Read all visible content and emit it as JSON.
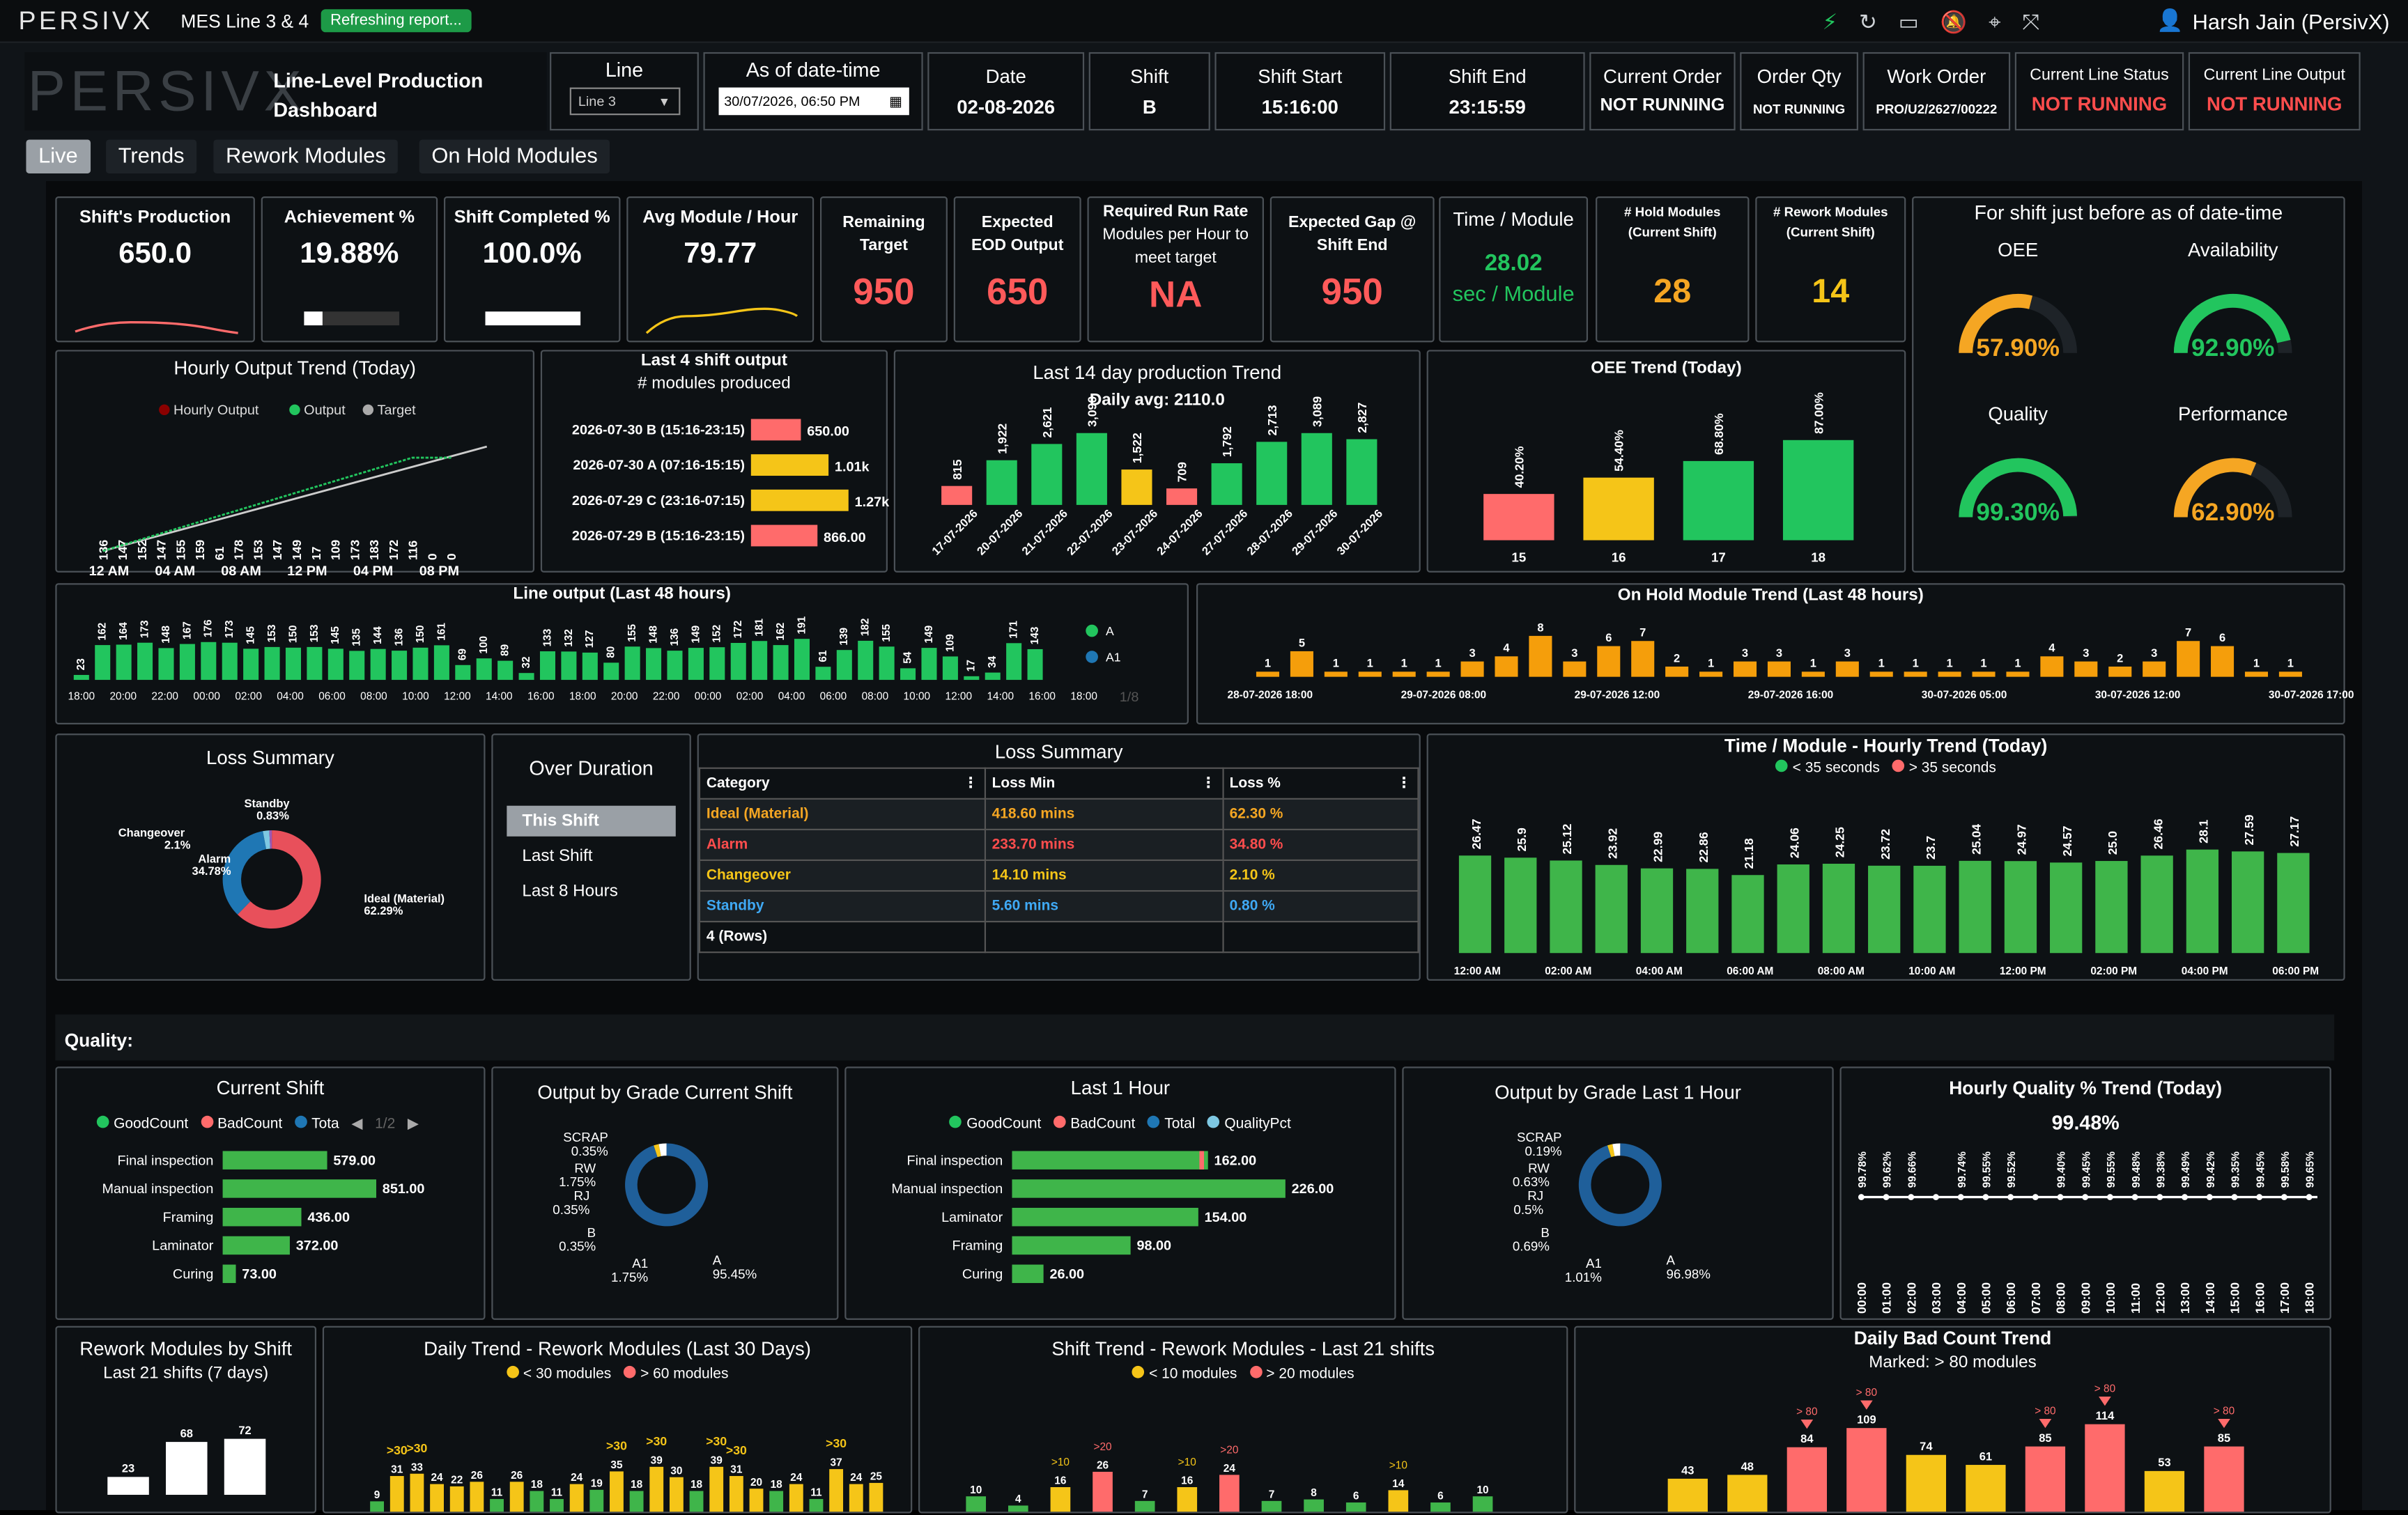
{
  "top": {
    "logo": "PERSIVX",
    "title": "MES Line 3 & 4",
    "badge": "Refreshing report...",
    "user": "Harsh Jain (PersivX)"
  },
  "header": {
    "dash_logo": "PERSIVX",
    "dash_title_1": "Line-Level Production",
    "dash_title_2": "Dashboard",
    "line_label": "Line",
    "line_value": "Line 3",
    "asof_label": "As of date-time",
    "asof_value": "30/07/2026, 06:50  PM",
    "date_label": "Date",
    "date_value": "02-08-2026",
    "shift_label": "Shift",
    "shift_value": "B",
    "sstart_label": "Shift Start",
    "sstart_value": "15:16:00",
    "send_label": "Shift End",
    "send_value": "23:15:59",
    "corder_label": "Current Order",
    "corder_value": "NOT RUNNING",
    "oqty_label": "Order Qty",
    "oqty_value": "NOT RUNNING",
    "wo_label": "Work Order",
    "wo_value": "PRO/U2/2627/00222",
    "cls_label": "Current Line Status",
    "cls_value": "NOT RUNNING",
    "clo_label": "Current Line Output",
    "clo_value": "NOT RUNNING"
  },
  "tabs": [
    "Live",
    "Trends",
    "Rework Modules",
    "On Hold Modules"
  ],
  "kpis": {
    "shift_prod_label": "Shift's Production",
    "shift_prod": "650.0",
    "ach_label": "Achievement %",
    "ach": "19.88%",
    "ach_frac": 0.1988,
    "shift_comp_label": "Shift Completed %",
    "shift_comp": "100.0%",
    "shift_comp_frac": 1.0,
    "avg_label": "Avg Module / Hour",
    "avg": "79.77",
    "rem_label_1": "Remaining",
    "rem_label_2": "Target",
    "rem": "950",
    "eod_label_1": "Expected",
    "eod_label_2": "EOD Output",
    "eod": "650",
    "rr_label_1": "Required Run Rate",
    "rr_label_2": "Modules per Hour to",
    "rr_label_3": "meet target",
    "rr": "NA",
    "gap_label_1": "Expected Gap @",
    "gap_label_2": "Shift End",
    "gap": "950",
    "tpm_label": "Time / Module",
    "tpm": "28.02",
    "tpm_unit": "sec / Module",
    "hold_label_1": "# Hold Modules",
    "hold_label_2": "(Current Shift)",
    "hold": "28",
    "rework_label_1": "# Rework Modules",
    "rework_label_2": "(Current Shift)",
    "rework": "14"
  },
  "gauges": {
    "title": "For shift just before as of date-time",
    "items": [
      {
        "label": "OEE",
        "text": "57.90%",
        "value": 57.9,
        "color": "#f5a623"
      },
      {
        "label": "Availability",
        "text": "92.90%",
        "value": 92.9,
        "color": "#22c55e"
      },
      {
        "label": "Quality",
        "text": "99.30%",
        "value": 99.3,
        "color": "#22c55e"
      },
      {
        "label": "Performance",
        "text": "62.90%",
        "value": 62.9,
        "color": "#f5a623"
      }
    ]
  },
  "hourly_trend": {
    "title": "Hourly Output Trend (Today)",
    "legend": [
      "Hourly Output",
      "Output",
      "Target"
    ],
    "values": [
      136,
      147,
      152,
      147,
      155,
      159,
      61,
      178,
      153,
      147,
      149,
      17,
      109,
      173,
      183,
      172,
      116,
      0,
      0
    ],
    "xlabels": [
      "12 AM",
      "04 AM",
      "08 AM",
      "12 PM",
      "04 PM",
      "08 PM"
    ]
  },
  "last4": {
    "title": "Last 4 shift output",
    "subtitle": "# modules produced",
    "rows": [
      {
        "label": "2026-07-30 B (15:16-23:15)",
        "text": "650.00",
        "value": 650,
        "color": "#ff6b6b"
      },
      {
        "label": "2026-07-30 A (07:16-15:15)",
        "text": "1.01k",
        "value": 1010,
        "color": "#f5c518"
      },
      {
        "label": "2026-07-29 C (23:16-07:15)",
        "text": "1.27k",
        "value": 1270,
        "color": "#f5c518"
      },
      {
        "label": "2026-07-29 B (15:16-23:15)",
        "text": "866.00",
        "value": 866,
        "color": "#ff6b6b"
      }
    ]
  },
  "day14": {
    "title": "Last 14 day production Trend",
    "subtitle": "Daily avg: 2110.0",
    "values": [
      815,
      1922,
      2621,
      3090,
      1522,
      709,
      1792,
      2713,
      3089,
      2827
    ],
    "labels": [
      "815",
      "1,922",
      "2,621",
      "3,090",
      "1,522",
      "709",
      "1,792",
      "2,713",
      "3,089",
      "2,827"
    ],
    "colors": [
      "#ff6b6b",
      "#22c55e",
      "#22c55e",
      "#22c55e",
      "#f5c518",
      "#ff6b6b",
      "#22c55e",
      "#22c55e",
      "#22c55e",
      "#22c55e"
    ],
    "dates": [
      "17-07-2026",
      "20-07-2026",
      "21-07-2026",
      "22-07-2026",
      "23-07-2026",
      "24-07-2026",
      "27-07-2026",
      "28-07-2026",
      "29-07-2026",
      "30-07-2026"
    ]
  },
  "oee_trend": {
    "title": "OEE Trend (Today)",
    "values": [
      40.2,
      54.4,
      68.8,
      87.0
    ],
    "labels": [
      "40.20%",
      "54.40%",
      "68.80%",
      "87.00%"
    ],
    "colors": [
      "#ff6b6b",
      "#f5c518",
      "#22c55e",
      "#22c55e"
    ],
    "x": [
      "15",
      "16",
      "17",
      "18"
    ]
  },
  "line48": {
    "title": "Line output (Last 48 hours)",
    "values": [
      23,
      162,
      164,
      173,
      148,
      167,
      176,
      173,
      145,
      153,
      150,
      153,
      145,
      135,
      144,
      136,
      150,
      161,
      69,
      100,
      89,
      32,
      133,
      132,
      127,
      80,
      155,
      148,
      136,
      149,
      152,
      172,
      181,
      162,
      191,
      61,
      139,
      182,
      155,
      54,
      149,
      109,
      17,
      34,
      171,
      143
    ],
    "xlabels": [
      "18:00",
      "20:00",
      "22:00",
      "00:00",
      "02:00",
      "04:00",
      "06:00",
      "08:00",
      "10:00",
      "12:00",
      "14:00",
      "16:00",
      "18:00",
      "20:00",
      "22:00",
      "00:00",
      "02:00",
      "04:00",
      "06:00",
      "08:00",
      "10:00",
      "12:00",
      "14:00",
      "16:00",
      "18:00"
    ],
    "legend": [
      "A",
      "A1"
    ],
    "pager": "1/8"
  },
  "hold48": {
    "title": "On Hold Module Trend (Last 48 hours)",
    "values": [
      1,
      5,
      1,
      1,
      1,
      1,
      3,
      4,
      8,
      3,
      6,
      7,
      2,
      1,
      3,
      3,
      1,
      3,
      1,
      1,
      1,
      1,
      1,
      4,
      3,
      2,
      3,
      7,
      6,
      1,
      1
    ],
    "xlabels": [
      "28-07-2026 18:00",
      "29-07-2026 08:00",
      "29-07-2026 12:00",
      "29-07-2026 16:00",
      "30-07-2026 05:00",
      "30-07-2026 12:00",
      "30-07-2026 17:00"
    ]
  },
  "loss_summary": {
    "title": "Loss Summary",
    "slices": [
      {
        "name": "Ideal (Material)",
        "pct": "62.29%",
        "value": 62.29,
        "color": "#e8505b"
      },
      {
        "name": "Alarm",
        "pct": "34.78%",
        "value": 34.78,
        "color": "#1f77b4"
      },
      {
        "name": "Changeover",
        "pct": "2.1%",
        "value": 2.1,
        "color": "#7ec8e3"
      },
      {
        "name": "Standby",
        "pct": "0.83%",
        "value": 0.83,
        "color": "#9b59b6"
      }
    ]
  },
  "over_duration": {
    "title": "Over Duration",
    "items": [
      "This Shift",
      "Last Shift",
      "Last 8 Hours"
    ]
  },
  "loss_table": {
    "title": "Loss Summary",
    "headers": [
      "Category",
      "Loss Min",
      "Loss %"
    ],
    "rows": [
      {
        "c": "Ideal (Material)",
        "m": "418.60 mins",
        "p": "62.30 %",
        "color": "#f5a623"
      },
      {
        "c": "Alarm",
        "m": "233.70 mins",
        "p": "34.80 %",
        "color": "#ff4d4d"
      },
      {
        "c": "Changeover",
        "m": "14.10 mins",
        "p": "2.10 %",
        "color": "#f5c518"
      },
      {
        "c": "Standby",
        "m": "5.60 mins",
        "p": "0.80 %",
        "color": "#3fa9f5"
      }
    ],
    "footer": "4 (Rows)"
  },
  "tpm_trend": {
    "title": "Time / Module - Hourly Trend (Today)",
    "legend": [
      "< 35 seconds",
      "> 35 seconds"
    ],
    "values": [
      26.47,
      25.9,
      25.12,
      23.92,
      22.99,
      22.86,
      21.18,
      24.06,
      24.25,
      23.72,
      23.7,
      25.04,
      24.97,
      24.57,
      25.0,
      26.46,
      28.1,
      27.59,
      27.17
    ],
    "xlabels": [
      "12:00 AM",
      "02:00 AM",
      "04:00 AM",
      "06:00 AM",
      "08:00 AM",
      "10:00 AM",
      "12:00 PM",
      "02:00 PM",
      "04:00 PM",
      "06:00 PM"
    ]
  },
  "quality": {
    "label": "Quality:",
    "current": {
      "title": "Current Shift",
      "legend": [
        "GoodCount",
        "BadCount",
        "Tota"
      ],
      "pager": "1/2",
      "rows": [
        {
          "n": "Final inspection",
          "v": 579
        },
        {
          "n": "Manual inspection",
          "v": 851
        },
        {
          "n": "Framing",
          "v": 436
        },
        {
          "n": "Laminator",
          "v": 372
        },
        {
          "n": "Curing",
          "v": 73
        }
      ],
      "texts": [
        "579.00",
        "851.00",
        "436.00",
        "372.00",
        "73.00"
      ]
    },
    "grade_cur": {
      "title": "Output by Grade Current Shift",
      "labels": [
        {
          "n": "SCRAP",
          "p": "0.35%"
        },
        {
          "n": "RW",
          "p": "1.75%"
        },
        {
          "n": "RJ",
          "p": "0.35%"
        },
        {
          "n": "B",
          "p": "0.35%"
        },
        {
          "n": "A1",
          "p": "1.75%"
        },
        {
          "n": "A",
          "p": "95.45%"
        }
      ]
    },
    "last1h": {
      "title": "Last 1 Hour",
      "legend": [
        "GoodCount",
        "BadCount",
        "Total",
        "QualityPct"
      ],
      "rows": [
        {
          "n": "Final inspection",
          "v": 162
        },
        {
          "n": "Manual inspection",
          "v": 226
        },
        {
          "n": "Laminator",
          "v": 154
        },
        {
          "n": "Framing",
          "v": 98
        },
        {
          "n": "Curing",
          "v": 26
        }
      ],
      "texts": [
        "162.00",
        "226.00",
        "154.00",
        "98.00",
        "26.00"
      ]
    },
    "grade_1h": {
      "title": "Output by Grade Last 1 Hour",
      "labels": [
        {
          "n": "SCRAP",
          "p": "0.19%"
        },
        {
          "n": "RW",
          "p": "0.63%"
        },
        {
          "n": "RJ",
          "p": "0.5%"
        },
        {
          "n": "B",
          "p": "0.69%"
        },
        {
          "n": "A1",
          "p": "1.01%"
        },
        {
          "n": "A",
          "p": "96.98%"
        }
      ]
    },
    "hq": {
      "title": "Hourly Quality % Trend (Today)",
      "value": "99.48%",
      "points": [
        "99.78%",
        "99.62%",
        "99.66%",
        "",
        "99.74%",
        "99.55%",
        "99.52%",
        "",
        "99.40%",
        "99.45%",
        "99.55%",
        "99.48%",
        "99.38%",
        "99.49%",
        "99.42%",
        "99.35%",
        "99.45%",
        "99.58%",
        "99.65%"
      ],
      "hours": [
        "00:00",
        "01:00",
        "02:00",
        "03:00",
        "04:00",
        "05:00",
        "06:00",
        "07:00",
        "08:00",
        "09:00",
        "10:00",
        "11:00",
        "12:00",
        "13:00",
        "14:00",
        "15:00",
        "16:00",
        "17:00",
        "18:00"
      ]
    }
  },
  "rework_shift": {
    "title": "Rework Modules by Shift",
    "subtitle": "Last 21 shifts (7 days)",
    "values": [
      23,
      68,
      72
    ],
    "labels": [
      "23",
      "68",
      "72"
    ]
  },
  "daily_rework": {
    "title": "Daily Trend - Rework Modules (Last 30 Days)",
    "legend": [
      "< 30 modules",
      "> 60 modules"
    ],
    "values": [
      9,
      31,
      33,
      24,
      22,
      26,
      11,
      26,
      18,
      11,
      24,
      19,
      35,
      18,
      39,
      30,
      18,
      39,
      31,
      20,
      18,
      24,
      11,
      37,
      24,
      25
    ],
    "marker": ">30"
  },
  "shift_rework": {
    "title": "Shift Trend - Rework Modules - Last 21 shifts",
    "legend": [
      "< 10 modules",
      "> 20 modules"
    ],
    "values": [
      10,
      4,
      16,
      26,
      7,
      16,
      24,
      7,
      8,
      6,
      14,
      6,
      10
    ],
    "marker_a": ">10",
    "marker_b": ">20"
  },
  "bad_count": {
    "title": "Daily Bad Count Trend",
    "subtitle": "Marked: > 80 modules",
    "values": [
      43,
      48,
      84,
      109,
      74,
      61,
      85,
      114,
      53,
      85
    ],
    "colors": [
      "#f5c518",
      "#f5c518",
      "#ff6b6b",
      "#ff6b6b",
      "#f5c518",
      "#f5c518",
      "#ff6b6b",
      "#ff6b6b",
      "#f5c518",
      "#ff6b6b"
    ],
    "marker": "> 80"
  }
}
